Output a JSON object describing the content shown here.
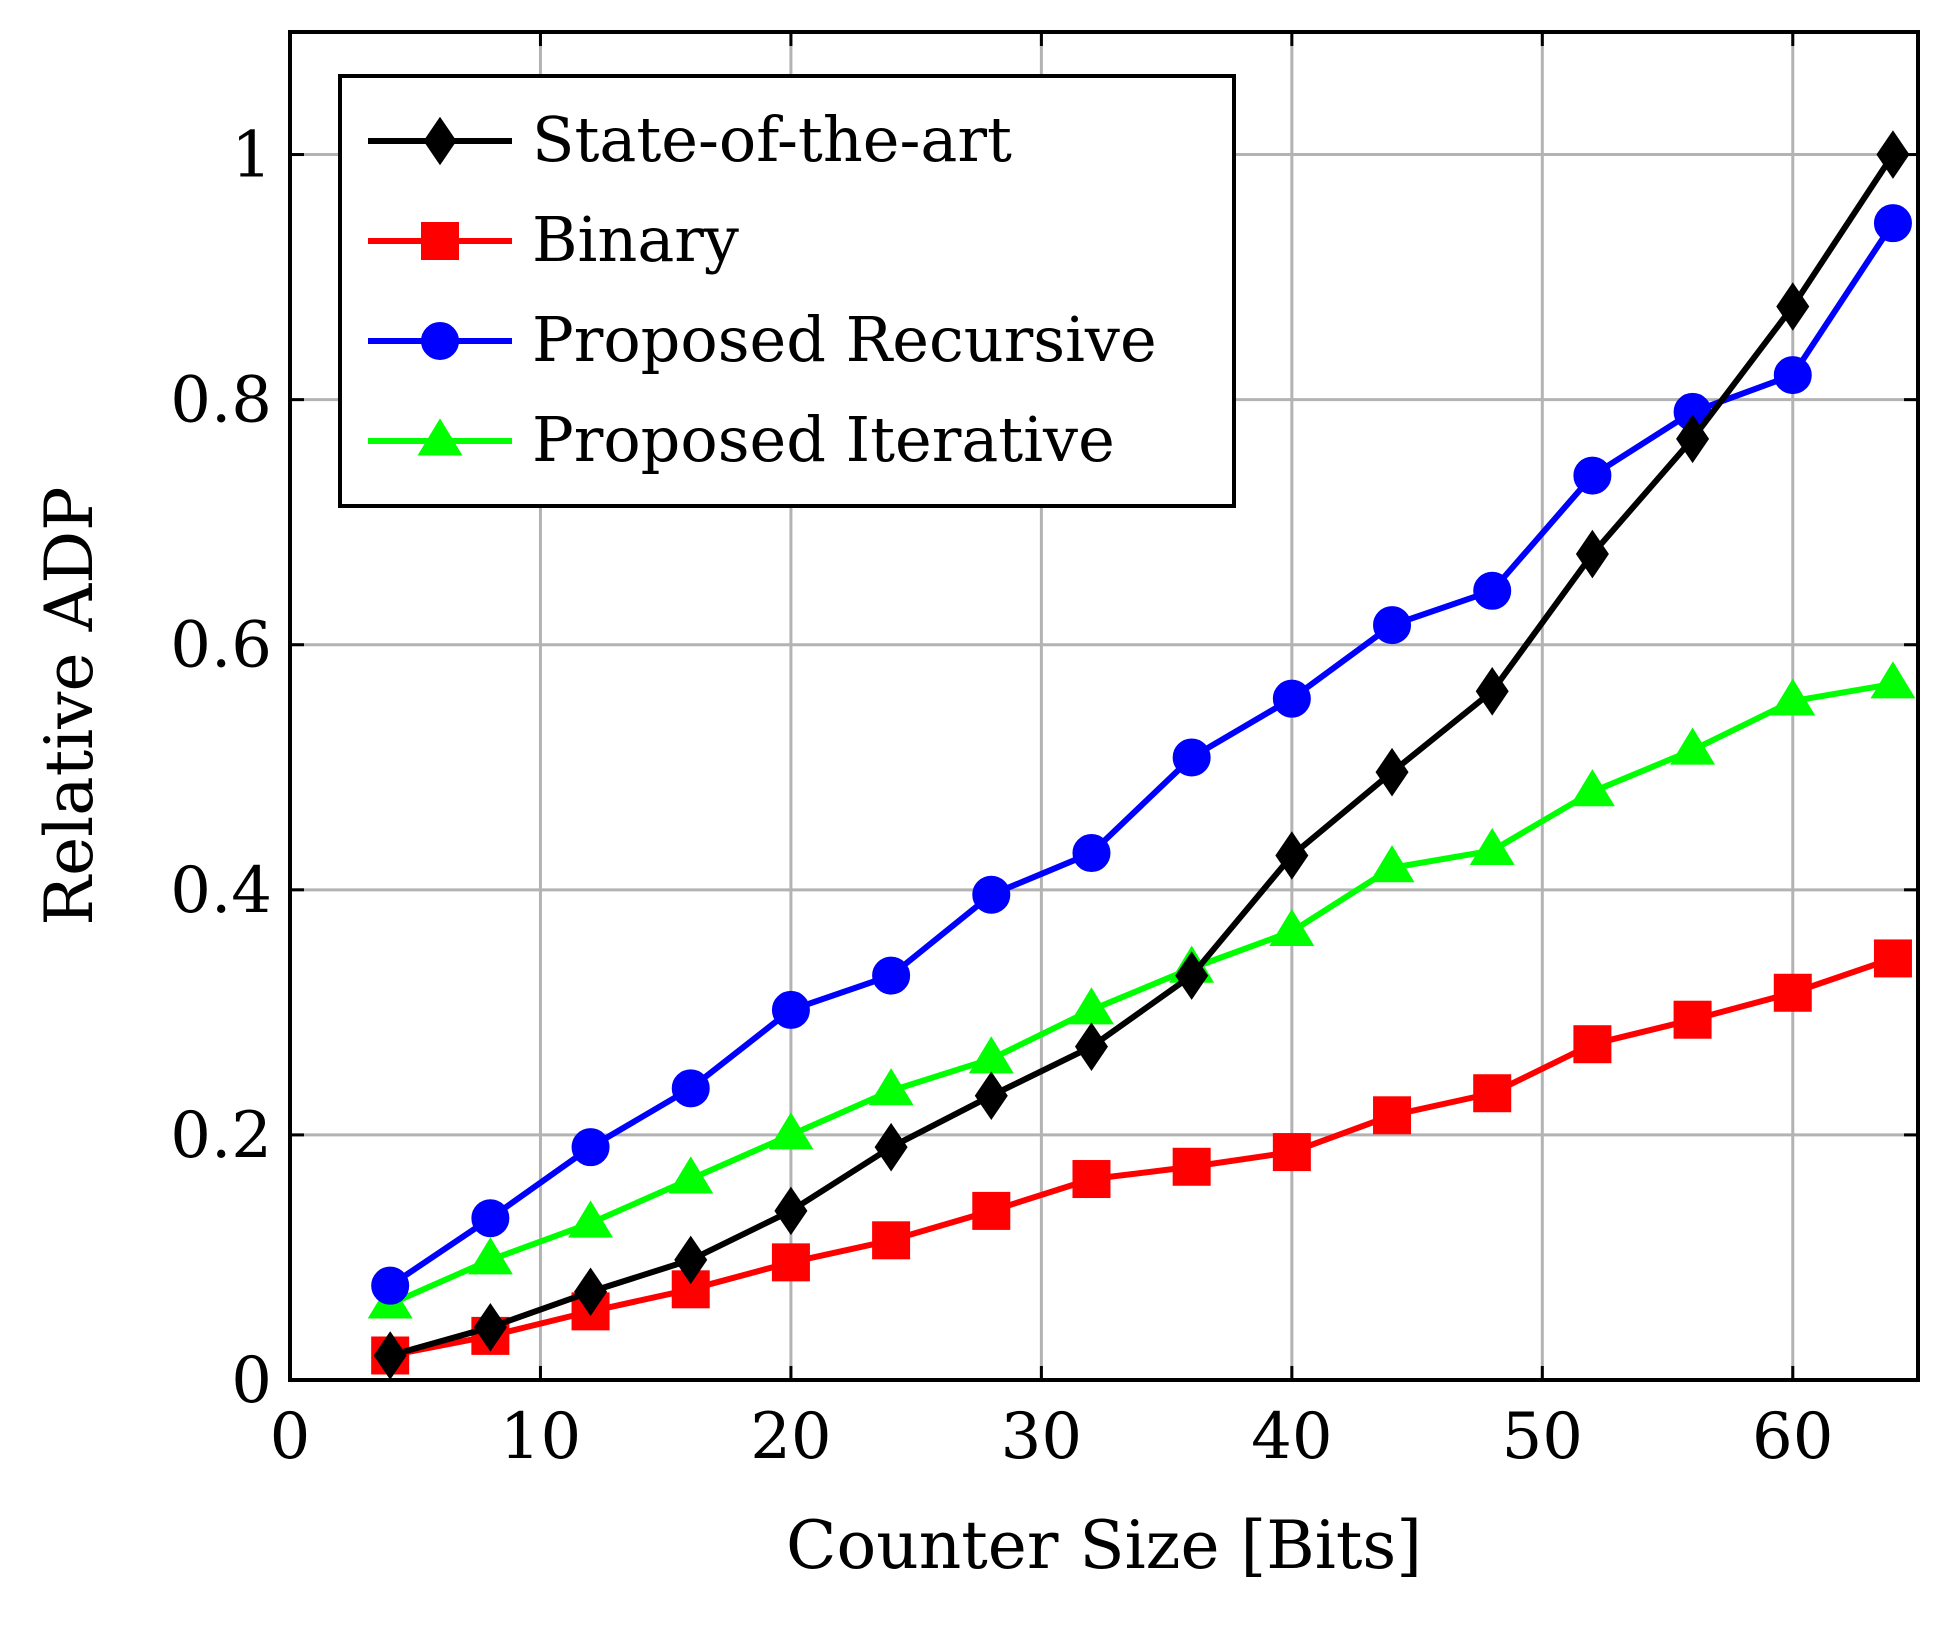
{
  "chart_data": {
    "type": "line",
    "title": "",
    "xlabel": "Counter Size [Bits]",
    "ylabel": "Relative ADP",
    "xlim": [
      0,
      65
    ],
    "ylim": [
      0,
      1.1
    ],
    "xticks": [
      0,
      10,
      20,
      30,
      40,
      50,
      60
    ],
    "yticks": [
      0,
      0.2,
      0.4,
      0.6,
      0.8,
      1
    ],
    "xtick_labels": [
      "0",
      "10",
      "20",
      "30",
      "40",
      "50",
      "60"
    ],
    "ytick_labels": [
      "0",
      "0.2",
      "0.4",
      "0.6",
      "0.8",
      "1"
    ],
    "grid": true,
    "legend_position": "top-left",
    "x": [
      4,
      8,
      12,
      16,
      20,
      24,
      28,
      32,
      36,
      40,
      44,
      48,
      52,
      56,
      60,
      64
    ],
    "series": [
      {
        "name": "State-of-the-art",
        "color": "#000000",
        "marker": "diamond",
        "values": [
          0.02,
          0.043,
          0.072,
          0.098,
          0.138,
          0.19,
          0.232,
          0.272,
          0.33,
          0.428,
          0.496,
          0.562,
          0.674,
          0.768,
          0.876,
          1.0
        ]
      },
      {
        "name": "Binary",
        "color": "#ff0000",
        "marker": "square",
        "values": [
          0.02,
          0.036,
          0.056,
          0.074,
          0.096,
          0.114,
          0.138,
          0.164,
          0.174,
          0.186,
          0.216,
          0.234,
          0.274,
          0.294,
          0.316,
          0.344
        ]
      },
      {
        "name": "Proposed Recursive",
        "color": "#0000ff",
        "marker": "circle",
        "values": [
          0.077,
          0.132,
          0.19,
          0.238,
          0.302,
          0.33,
          0.396,
          0.43,
          0.508,
          0.556,
          0.616,
          0.644,
          0.738,
          0.79,
          0.82,
          0.944
        ]
      },
      {
        "name": "Proposed Iterative",
        "color": "#00ff00",
        "marker": "triangle",
        "values": [
          0.062,
          0.098,
          0.128,
          0.164,
          0.2,
          0.236,
          0.262,
          0.302,
          0.336,
          0.366,
          0.418,
          0.432,
          0.48,
          0.514,
          0.554,
          0.568
        ]
      }
    ]
  }
}
